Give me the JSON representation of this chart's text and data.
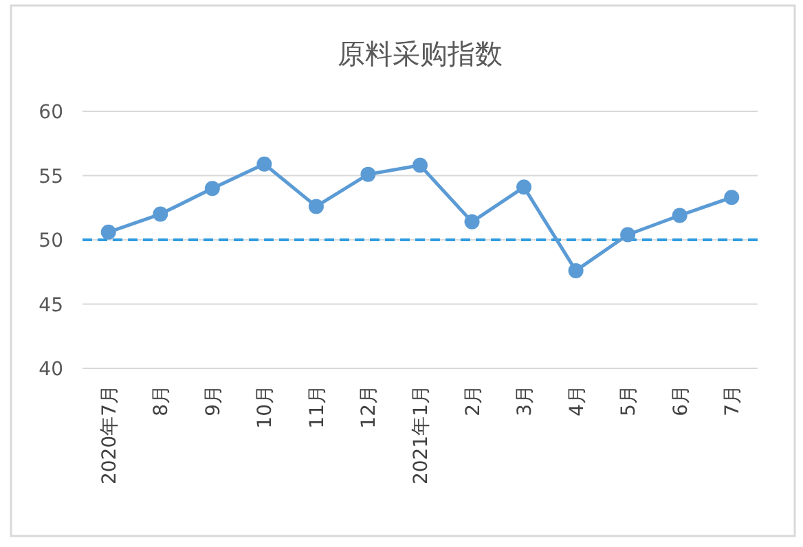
{
  "chart_data": {
    "type": "line",
    "title": "原料采购指数",
    "categories": [
      "2020年7月",
      "8月",
      "9月",
      "10月",
      "11月",
      "12月",
      "2021年1月",
      "2月",
      "3月",
      "4月",
      "5月",
      "6月",
      "7月"
    ],
    "values": [
      50.6,
      52.0,
      54.0,
      55.9,
      52.6,
      55.1,
      55.8,
      51.4,
      54.1,
      47.6,
      50.4,
      51.9,
      53.3
    ],
    "color": "#5b9bd5",
    "marker": "circle",
    "ylim": [
      40,
      60
    ],
    "yticks": [
      40,
      45,
      50,
      55,
      60
    ],
    "grid": "y",
    "ref_lines": [
      {
        "axis": "y",
        "value": 50,
        "color": "#2e9ce0",
        "line_style": "dashed"
      }
    ]
  }
}
